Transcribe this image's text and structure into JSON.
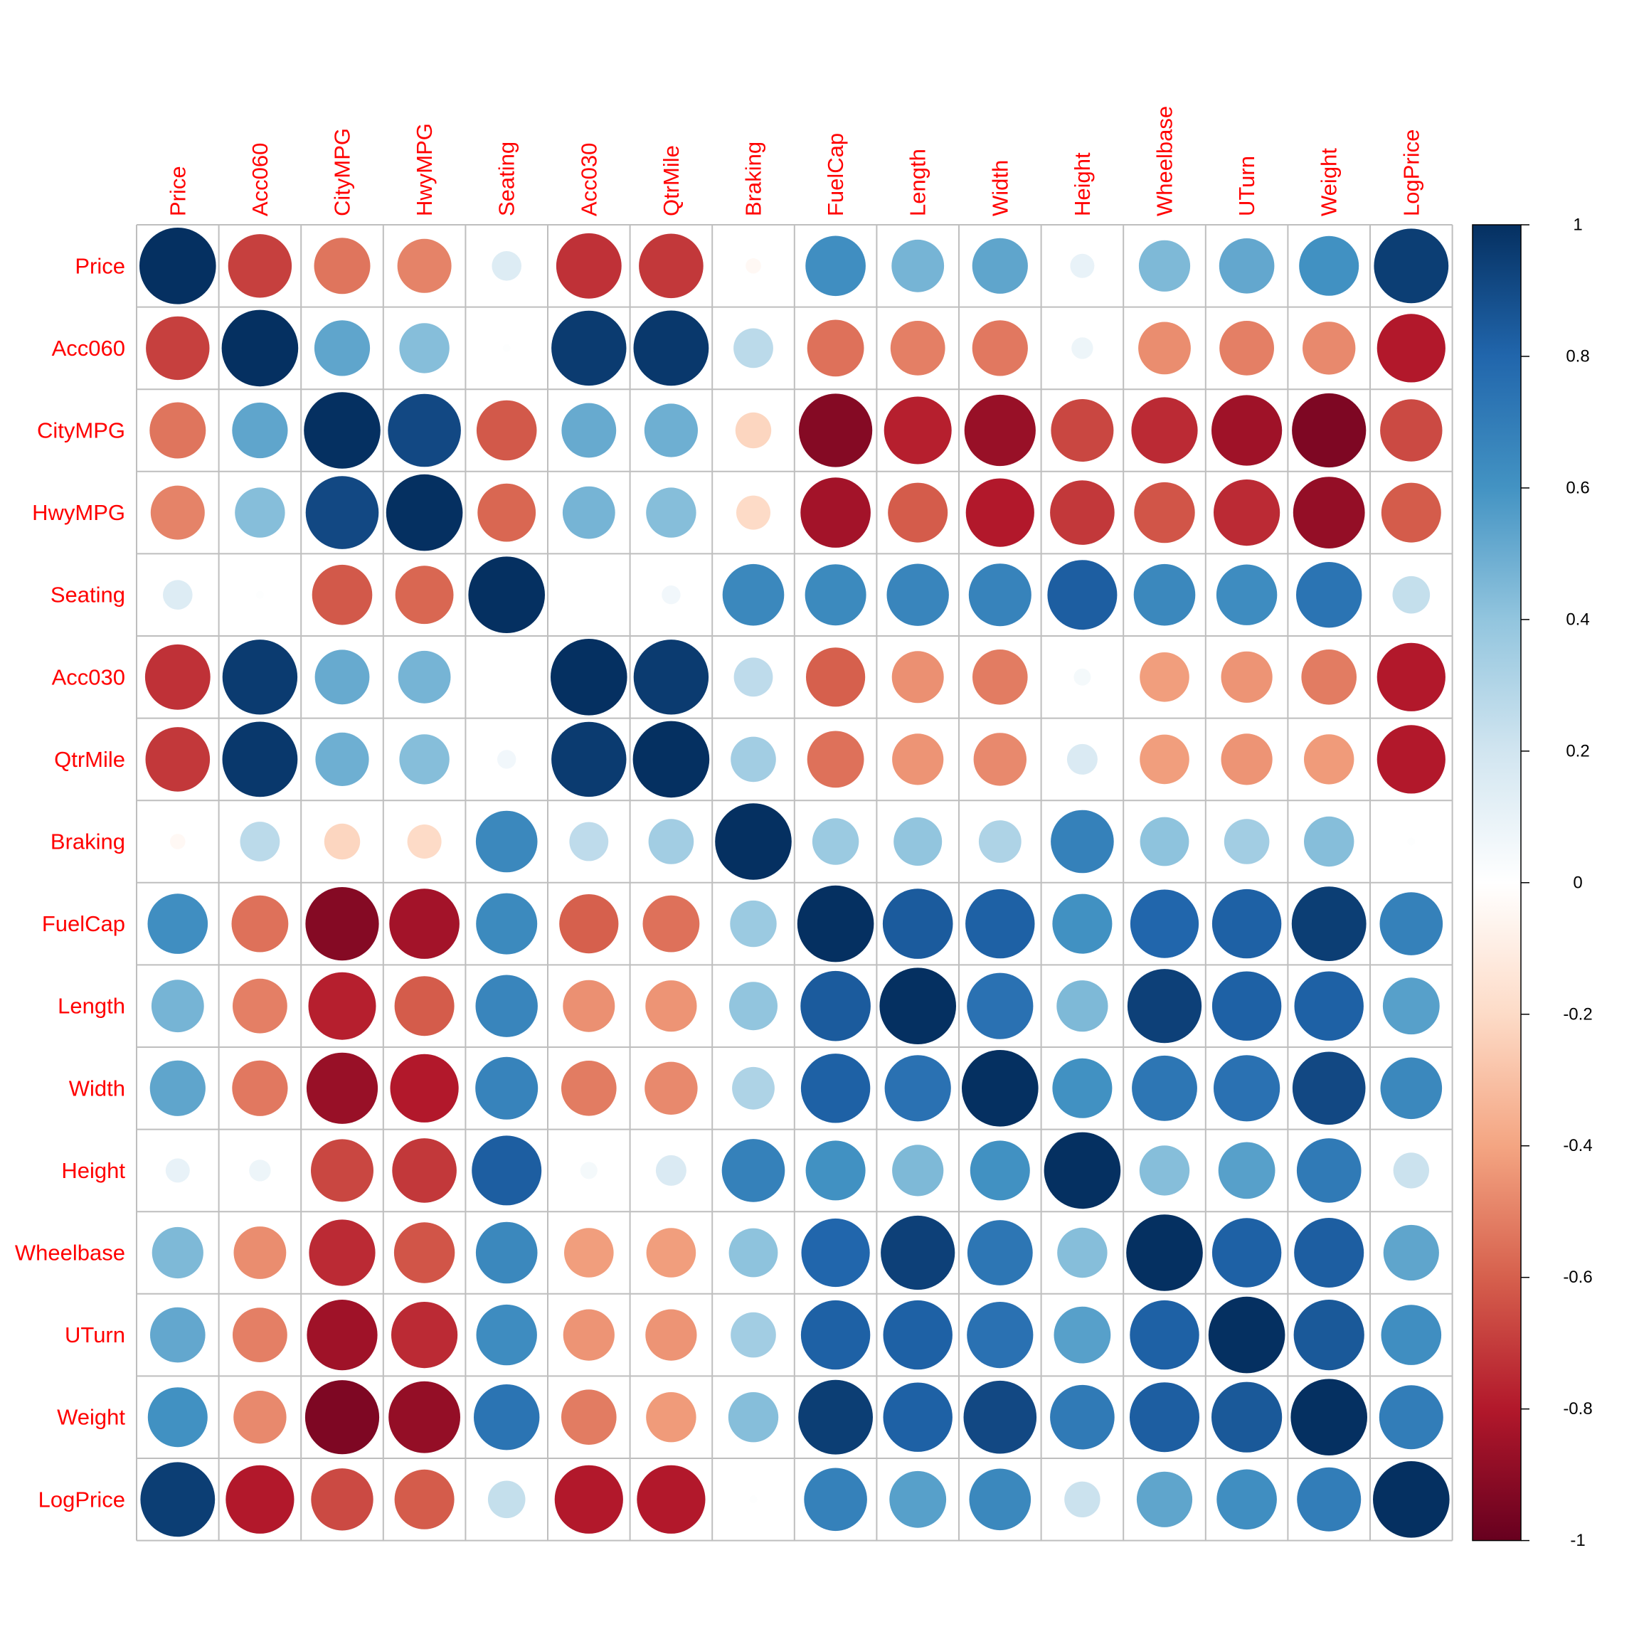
{
  "chart_data": {
    "type": "heatmap",
    "subtype": "correlation-circle-matrix",
    "title": "",
    "xlabel": "",
    "ylabel": "",
    "variables": [
      "Price",
      "Acc060",
      "CityMPG",
      "HwyMPG",
      "Seating",
      "Acc030",
      "QtrMile",
      "Braking",
      "FuelCap",
      "Length",
      "Width",
      "Height",
      "Wheelbase",
      "UTurn",
      "Weight",
      "LogPrice"
    ],
    "matrix": [
      [
        1.0,
        -0.69,
        -0.54,
        -0.5,
        0.15,
        -0.73,
        -0.71,
        -0.04,
        0.62,
        0.47,
        0.53,
        0.1,
        0.45,
        0.52,
        0.61,
        0.95
      ],
      [
        -0.69,
        1.0,
        0.53,
        0.43,
        0.01,
        0.96,
        0.97,
        0.27,
        -0.55,
        -0.51,
        -0.53,
        0.08,
        -0.47,
        -0.51,
        -0.48,
        -0.8
      ],
      [
        -0.54,
        0.53,
        1.0,
        0.91,
        -0.62,
        0.51,
        0.49,
        -0.22,
        -0.92,
        -0.78,
        -0.87,
        -0.67,
        -0.75,
        -0.85,
        -0.94,
        -0.66
      ],
      [
        -0.5,
        0.43,
        0.91,
        1.0,
        -0.58,
        0.47,
        0.43,
        -0.2,
        -0.84,
        -0.61,
        -0.8,
        -0.71,
        -0.63,
        -0.75,
        -0.88,
        -0.61
      ],
      [
        0.15,
        0.01,
        -0.62,
        -0.58,
        1.0,
        0.0,
        0.06,
        0.65,
        0.64,
        0.66,
        0.67,
        0.83,
        0.65,
        0.63,
        0.74,
        0.24
      ],
      [
        -0.73,
        0.96,
        0.51,
        0.47,
        0.0,
        1.0,
        0.96,
        0.26,
        -0.6,
        -0.46,
        -0.52,
        0.05,
        -0.42,
        -0.45,
        -0.52,
        -0.8
      ],
      [
        -0.71,
        0.97,
        0.49,
        0.43,
        0.06,
        0.96,
        1.0,
        0.35,
        -0.55,
        -0.45,
        -0.48,
        0.16,
        -0.42,
        -0.45,
        -0.43,
        -0.8
      ],
      [
        -0.04,
        0.27,
        -0.22,
        -0.2,
        0.65,
        0.26,
        0.35,
        1.0,
        0.37,
        0.4,
        0.31,
        0.68,
        0.41,
        0.35,
        0.43,
        0.01
      ],
      [
        0.62,
        -0.55,
        -0.92,
        -0.84,
        0.64,
        -0.6,
        -0.55,
        0.37,
        1.0,
        0.84,
        0.82,
        0.61,
        0.8,
        0.82,
        0.95,
        0.68
      ],
      [
        0.47,
        -0.51,
        -0.78,
        -0.61,
        0.66,
        -0.46,
        -0.45,
        0.4,
        0.84,
        1.0,
        0.75,
        0.45,
        0.94,
        0.82,
        0.82,
        0.55
      ],
      [
        0.53,
        -0.53,
        -0.87,
        -0.8,
        0.67,
        -0.52,
        -0.48,
        0.31,
        0.82,
        0.75,
        1.0,
        0.61,
        0.73,
        0.75,
        0.91,
        0.65
      ],
      [
        0.1,
        0.08,
        -0.67,
        -0.71,
        0.83,
        0.05,
        0.16,
        0.68,
        0.61,
        0.45,
        0.61,
        1.0,
        0.43,
        0.55,
        0.71,
        0.22
      ],
      [
        0.45,
        -0.47,
        -0.75,
        -0.63,
        0.65,
        -0.42,
        -0.42,
        0.41,
        0.8,
        0.94,
        0.73,
        0.43,
        1.0,
        0.82,
        0.83,
        0.53
      ],
      [
        0.52,
        -0.51,
        -0.85,
        -0.75,
        0.63,
        -0.45,
        -0.45,
        0.35,
        0.82,
        0.82,
        0.75,
        0.55,
        0.82,
        1.0,
        0.85,
        0.62
      ],
      [
        0.61,
        -0.48,
        -0.94,
        -0.88,
        0.74,
        -0.52,
        -0.43,
        0.43,
        0.95,
        0.82,
        0.91,
        0.71,
        0.83,
        0.85,
        1.0,
        0.7
      ],
      [
        0.95,
        -0.8,
        -0.66,
        -0.61,
        0.24,
        -0.8,
        -0.8,
        0.01,
        0.68,
        0.55,
        0.65,
        0.22,
        0.53,
        0.62,
        0.7,
        1.0
      ]
    ],
    "colorbar": {
      "range": [
        -1,
        1
      ],
      "ticks": [
        "1",
        "0.8",
        "0.6",
        "0.4",
        "0.2",
        "0",
        "-0.2",
        "-0.4",
        "-0.6",
        "-0.8",
        "-1"
      ],
      "placement": "right"
    },
    "palette": [
      "#67001F",
      "#B2182B",
      "#D6604D",
      "#F4A582",
      "#FDDBC7",
      "#FFFFFF",
      "#D1E5F0",
      "#92C5DE",
      "#4393C3",
      "#2166AC",
      "#053061"
    ],
    "label_color": "#FF0000",
    "grid": true
  }
}
